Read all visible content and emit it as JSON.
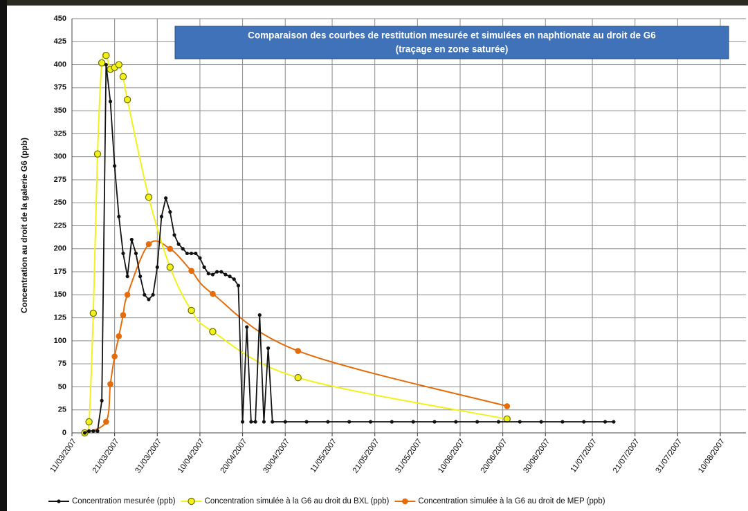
{
  "chart_data": {
    "type": "line",
    "title": "Comparaison des courbes de restitution mesurée et simulées en naphtionate au droit de G6",
    "subtitle": "(traçage en zone saturée)",
    "y_label": "Concentration au droit de la galerie G6 (ppb)",
    "xlim": [
      "2007-03-11",
      "2007-08-16"
    ],
    "xticks": [
      {
        "value": "2007-03-11",
        "label": "11/03/2007"
      },
      {
        "value": "2007-03-21",
        "label": "21/03/2007"
      },
      {
        "value": "2007-03-31",
        "label": "31/03/2007"
      },
      {
        "value": "2007-04-10",
        "label": "10/04/2007"
      },
      {
        "value": "2007-04-20",
        "label": "20/04/2007"
      },
      {
        "value": "2007-04-30",
        "label": "30/04/2007"
      },
      {
        "value": "2007-05-11",
        "label": "11/05/2007"
      },
      {
        "value": "2007-05-21",
        "label": "21/05/2007"
      },
      {
        "value": "2007-05-31",
        "label": "31/05/2007"
      },
      {
        "value": "2007-06-10",
        "label": "10/06/2007"
      },
      {
        "value": "2007-06-20",
        "label": "20/06/2007"
      },
      {
        "value": "2007-06-30",
        "label": "30/06/2007"
      },
      {
        "value": "2007-07-11",
        "label": "11/07/2007"
      },
      {
        "value": "2007-07-21",
        "label": "21/07/2007"
      },
      {
        "value": "2007-07-31",
        "label": "31/07/2007"
      },
      {
        "value": "2007-08-10",
        "label": "10/08/2007"
      }
    ],
    "ylim": [
      0,
      450
    ],
    "yticks": [
      0,
      25,
      50,
      75,
      100,
      125,
      150,
      175,
      200,
      225,
      250,
      275,
      300,
      325,
      350,
      375,
      400,
      425,
      450
    ],
    "grid": true,
    "series": [
      {
        "name": "Concentration mesurée (ppb)",
        "color": "#111111",
        "marker": "dot",
        "smooth": false,
        "x": [
          "2007-03-14",
          "2007-03-15",
          "2007-03-16",
          "2007-03-17",
          "2007-03-18",
          "2007-03-19",
          "2007-03-20",
          "2007-03-21",
          "2007-03-22",
          "2007-03-23",
          "2007-03-24",
          "2007-03-25",
          "2007-03-26",
          "2007-03-27",
          "2007-03-28",
          "2007-03-29",
          "2007-03-30",
          "2007-03-31",
          "2007-04-01",
          "2007-04-02",
          "2007-04-03",
          "2007-04-04",
          "2007-04-05",
          "2007-04-06",
          "2007-04-07",
          "2007-04-08",
          "2007-04-09",
          "2007-04-10",
          "2007-04-11",
          "2007-04-12",
          "2007-04-13",
          "2007-04-14",
          "2007-04-15",
          "2007-04-16",
          "2007-04-17",
          "2007-04-18",
          "2007-04-19",
          "2007-04-20",
          "2007-04-21",
          "2007-04-22",
          "2007-04-23",
          "2007-04-24",
          "2007-04-25",
          "2007-04-26",
          "2007-04-27",
          "2007-04-30",
          "2007-05-05",
          "2007-05-10",
          "2007-05-15",
          "2007-05-20",
          "2007-05-25",
          "2007-05-30",
          "2007-06-04",
          "2007-06-09",
          "2007-06-14",
          "2007-06-19",
          "2007-06-24",
          "2007-06-29",
          "2007-07-04",
          "2007-07-09",
          "2007-07-14",
          "2007-07-16"
        ],
        "values": [
          0,
          2,
          2,
          2,
          35,
          400,
          360,
          290,
          235,
          195,
          170,
          210,
          195,
          170,
          150,
          145,
          150,
          180,
          235,
          255,
          240,
          215,
          205,
          200,
          195,
          195,
          195,
          190,
          180,
          173,
          172,
          175,
          175,
          172,
          170,
          167,
          160,
          12,
          115,
          12,
          12,
          128,
          12,
          92,
          12,
          12,
          12,
          12,
          12,
          12,
          12,
          12,
          12,
          12,
          12,
          12,
          12,
          12,
          12,
          12,
          12,
          12
        ]
      },
      {
        "name": "Concentration simulée à la G6 au droit du BXL (ppb)",
        "color": "#f2f21a",
        "marker": "ring",
        "smooth": true,
        "x": [
          "2007-03-14",
          "2007-03-15",
          "2007-03-16",
          "2007-03-17",
          "2007-03-18",
          "2007-03-19",
          "2007-03-20",
          "2007-03-21",
          "2007-03-22",
          "2007-03-23",
          "2007-03-24",
          "2007-03-29",
          "2007-04-03",
          "2007-04-08",
          "2007-04-13",
          "2007-05-03",
          "2007-06-21"
        ],
        "values": [
          0,
          12,
          130,
          303,
          402,
          410,
          395,
          397,
          400,
          387,
          362,
          256,
          180,
          133,
          110,
          60,
          15
        ]
      },
      {
        "name": "Concentration simulée à la G6 au droit de MEP (ppb)",
        "color": "#e46c0a",
        "marker": "disc",
        "smooth": true,
        "x": [
          "2007-03-14",
          "2007-03-19",
          "2007-03-20",
          "2007-03-21",
          "2007-03-22",
          "2007-03-23",
          "2007-03-24",
          "2007-03-29",
          "2007-04-03",
          "2007-04-08",
          "2007-04-13",
          "2007-05-03",
          "2007-06-21"
        ],
        "values": [
          0,
          12,
          53,
          83,
          105,
          128,
          150,
          205,
          200,
          176,
          151,
          89,
          29
        ]
      }
    ]
  }
}
